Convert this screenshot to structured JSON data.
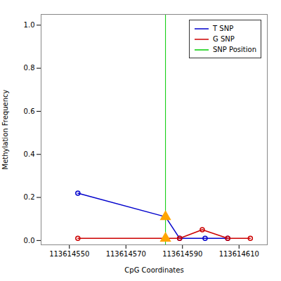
{
  "chart_data": {
    "type": "line",
    "xlabel": "CpG Coordinates",
    "ylabel": "Methylation Frequency",
    "series": [
      {
        "name": "SNP Position",
        "type": "vline",
        "color": "#00cc00",
        "x": [
          113614584
        ]
      },
      {
        "name": "T SNP",
        "type": "line",
        "marker": "circle",
        "color": "#0000cc",
        "x": [
          113614553,
          113614584,
          113614589,
          113614598,
          113614606
        ],
        "values": [
          0.22,
          0.11,
          0.01,
          0.01,
          0.01
        ]
      },
      {
        "name": "G SNP",
        "type": "line",
        "marker": "circle",
        "color": "#cc0000",
        "x": [
          113614553,
          113614584,
          113614589,
          113614597,
          113614606,
          113614614
        ],
        "values": [
          0.01,
          0.01,
          0.01,
          0.05,
          0.01,
          0.01
        ]
      },
      {
        "type": "scatter",
        "marker": "triangle",
        "color": "#FFA500",
        "x": [
          113614584,
          113614584
        ],
        "values": [
          0.11,
          0.01
        ]
      }
    ],
    "xlim": [
      113614540,
      113614620
    ],
    "xticks": [
      113614550,
      113614570,
      113614590,
      113614610
    ],
    "ylim": [
      -0.02,
      1.05
    ],
    "yticks": [
      {
        "value": 0.0,
        "label": "0.0"
      },
      0.2,
      0.4,
      0.6,
      0.8,
      {
        "value": 1.0,
        "label": "1.0"
      }
    ],
    "legend": "upper right"
  }
}
